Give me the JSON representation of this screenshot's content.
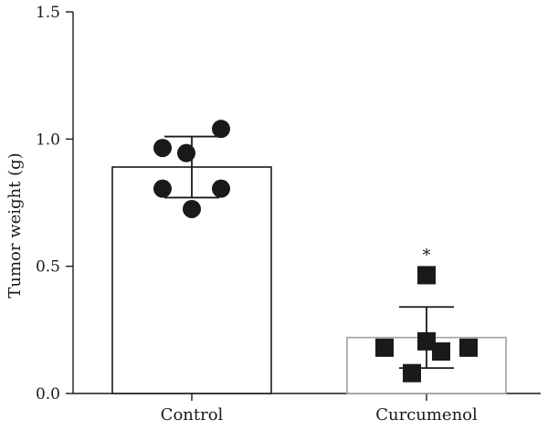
{
  "chart_data": {
    "type": "bar",
    "ylabel": "Tumor weight (g)",
    "ylim": [
      0,
      1.5
    ],
    "yticks": [
      "0.0",
      "0.5",
      "1.0",
      "1.5"
    ],
    "grid": false,
    "categories": [
      "Control",
      "Curcumenol"
    ],
    "series": [
      {
        "values": [
          0.89,
          0.22
        ],
        "error": [
          0.12,
          0.12
        ],
        "bar_edge_colors": [
          "#1a1a1a",
          "#a0a0a0"
        ],
        "bar_fill": "#ffffff",
        "points": [
          {
            "category": "Control",
            "marker": "circle",
            "y": [
              1.04,
              0.965,
              0.945,
              0.805,
              0.805,
              0.725
            ]
          },
          {
            "category": "Curcumenol",
            "marker": "square",
            "y": [
              0.465,
              0.205,
              0.18,
              0.18,
              0.165,
              0.08
            ]
          }
        ],
        "marker_color": "#1a1a1a"
      }
    ],
    "annotations": [
      {
        "category": "Curcumenol",
        "text": "*"
      }
    ]
  }
}
